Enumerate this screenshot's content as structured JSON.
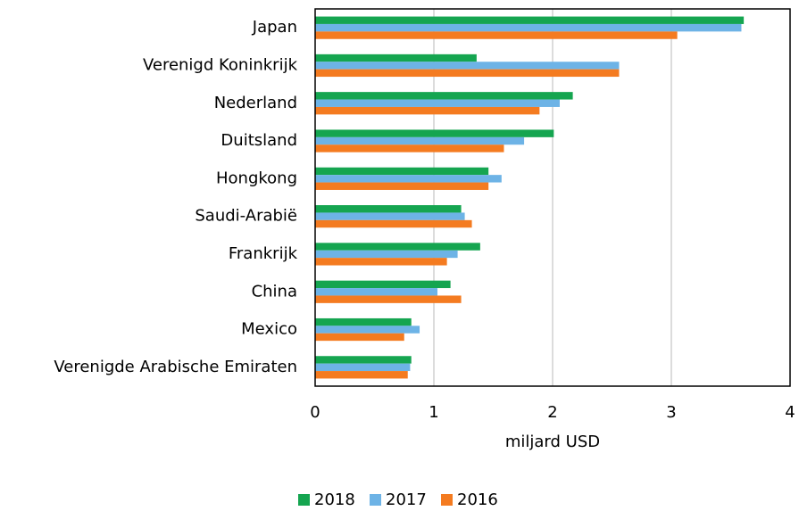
{
  "chart_data": {
    "type": "hbar",
    "categories": [
      "Japan",
      "Verenigd Koninkrijk",
      "Nederland",
      "Duitsland",
      "Hongkong",
      "Saudi-Arabië",
      "Frankrijk",
      "China",
      "Mexico",
      "Verenigde Arabische Emiraten"
    ],
    "series": [
      {
        "name": "2018",
        "color": "#15a550",
        "values": [
          3.61,
          1.36,
          2.17,
          2.01,
          1.46,
          1.23,
          1.39,
          1.14,
          0.81,
          0.81
        ]
      },
      {
        "name": "2017",
        "color": "#6db3e6",
        "values": [
          3.59,
          2.56,
          2.06,
          1.76,
          1.57,
          1.26,
          1.2,
          1.03,
          0.88,
          0.8
        ]
      },
      {
        "name": "2016",
        "color": "#f47b20",
        "values": [
          3.05,
          2.56,
          1.89,
          1.59,
          1.46,
          1.32,
          1.11,
          1.23,
          0.75,
          0.78
        ]
      }
    ],
    "xlabel": "miljard USD",
    "xlim": [
      0,
      4
    ],
    "xticks": [
      0,
      1,
      2,
      3,
      4
    ],
    "grid": true,
    "legend": "bottom"
  }
}
